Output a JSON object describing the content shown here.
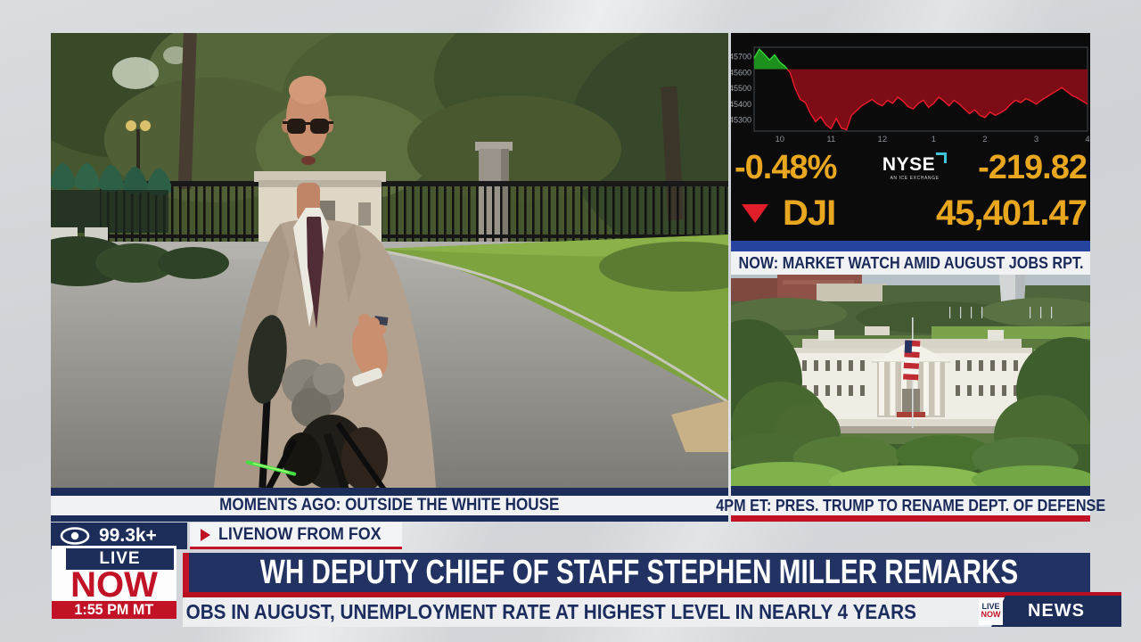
{
  "broadcast": {
    "viewer_count": "99.3k+",
    "tab_label": "LIVENOW FROM FOX",
    "logo": {
      "live": "LIVE",
      "now": "NOW",
      "time": "1:55 PM MT"
    },
    "mini_logo": {
      "top": "LIVE",
      "bottom": "NOW"
    },
    "headline": "WH DEPUTY CHIEF OF STAFF STEPHEN MILLER REMARKS",
    "ticker": "OBS IN AUGUST, UNEMPLOYMENT RATE AT HIGHEST LEVEL IN NEARLY 4 YEARS",
    "news_label": "NEWS"
  },
  "main_video": {
    "caption": "MOMENTS AGO: OUTSIDE THE WHITE HOUSE"
  },
  "wh_video": {
    "banner": "4PM ET: PRES. TRUMP TO RENAME DEPT. OF DEFENSE"
  },
  "market": {
    "banner": "NOW: MARKET WATCH AMID AUGUST JOBS RPT.",
    "exchange": "NYSE",
    "exchange_sub": "AN ICE EXCHANGE",
    "pct_change": "-0.48%",
    "point_change": "-219.82",
    "symbol": "DJI",
    "last": "45,401.47",
    "direction": "down"
  },
  "colors": {
    "navy": "#1c2d5a",
    "headline_navy": "#223363",
    "fox_red": "#c11226",
    "quote_gold": "#e9a71f",
    "blue_strip": "#2743a0",
    "panel_black": "#0b0b0c"
  },
  "chart_data": {
    "type": "area",
    "symbol": "DJI",
    "xlim": [
      9.5,
      16
    ],
    "ylim": [
      45230,
      45760
    ],
    "prev_close": 45621.29,
    "yticks": [
      45700,
      45600,
      45500,
      45400,
      45300
    ],
    "xticks": [
      "10",
      "11",
      "12",
      "1",
      "2",
      "3",
      "4"
    ],
    "xtick_pos": [
      10,
      11,
      12,
      13,
      14,
      15,
      16
    ],
    "grid": false,
    "legend": false,
    "series": {
      "t": [
        9.5,
        9.6,
        9.7,
        9.8,
        9.9,
        10.0,
        10.1,
        10.2,
        10.3,
        10.4,
        10.5,
        10.6,
        10.7,
        10.8,
        10.9,
        11.0,
        11.1,
        11.2,
        11.3,
        11.4,
        11.5,
        11.6,
        11.7,
        11.8,
        11.9,
        12.0,
        12.1,
        12.2,
        12.3,
        12.4,
        12.5,
        12.6,
        12.7,
        12.8,
        12.9,
        13.0,
        13.1,
        13.2,
        13.3,
        13.4,
        13.5,
        13.6,
        13.7,
        13.8,
        13.9,
        14.0,
        14.1,
        14.2,
        14.3,
        14.4,
        14.5,
        14.6,
        14.7,
        14.8,
        14.9,
        15.0,
        15.1,
        15.2,
        15.3,
        15.4,
        15.5,
        15.6,
        15.7,
        15.8,
        15.9,
        16.0
      ],
      "price": [
        45690,
        45748,
        45715,
        45680,
        45712,
        45665,
        45640,
        45600,
        45500,
        45430,
        45410,
        45340,
        45290,
        45320,
        45270,
        45245,
        45310,
        45250,
        45238,
        45330,
        45360,
        45390,
        45410,
        45430,
        45405,
        45390,
        45425,
        45405,
        45445,
        45420,
        45385,
        45370,
        45405,
        45425,
        45380,
        45405,
        45445,
        45420,
        45390,
        45425,
        45400,
        45370,
        45340,
        45365,
        45330,
        45315,
        45350,
        45330,
        45345,
        45365,
        45400,
        45425,
        45410,
        45435,
        45420,
        45400,
        45425,
        45445,
        45465,
        45485,
        45505,
        45480,
        45455,
        45440,
        45420,
        45401
      ]
    },
    "colors": {
      "up_line": "#35d435",
      "up_fill": "#1d8f1d",
      "down_line": "#ee1b2d",
      "down_fill": "#7c0d16",
      "axis_text": "#9aa0a6",
      "plot_border": "#43484e"
    }
  }
}
